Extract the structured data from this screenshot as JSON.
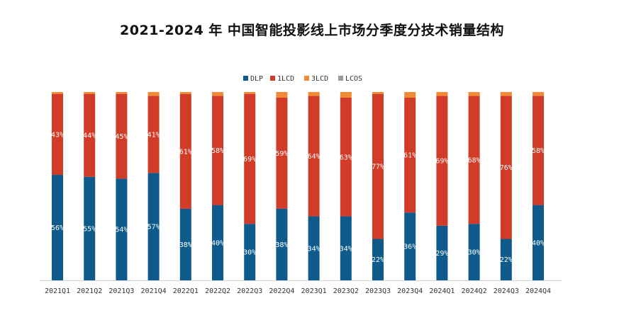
{
  "chart_data": {
    "type": "bar",
    "stacked": true,
    "title": "2021-2024 年 中国智能投影线上市场分季度分技术销量结构",
    "xlabel": "",
    "ylabel": "",
    "ylim": [
      0,
      100
    ],
    "legend_position": "top-center",
    "grid": false,
    "categories": [
      "2021Q1",
      "2021Q2",
      "2021Q3",
      "2021Q4",
      "2022Q1",
      "2022Q2",
      "2022Q3",
      "2022Q4",
      "2023Q1",
      "2023Q2",
      "2023Q3",
      "2023Q4",
      "2024Q1",
      "2024Q2",
      "2024Q3",
      "2024Q4"
    ],
    "series": [
      {
        "name": "DLP",
        "color": "#0e5a8a",
        "values": [
          56,
          55,
          54,
          57,
          38,
          40,
          30,
          38,
          34,
          34,
          22,
          36,
          29,
          30,
          22,
          40
        ],
        "labels": [
          "56%",
          "55%",
          "54%",
          "57%",
          "38%",
          "40%",
          "30%",
          "38%",
          "34%",
          "34%",
          "22%",
          "36%",
          "29%",
          "30%",
          "22%",
          "40%"
        ]
      },
      {
        "name": "1LCD",
        "color": "#d13c28",
        "values": [
          43,
          44,
          45,
          41,
          61,
          58,
          69,
          59,
          64,
          63,
          77,
          61,
          69,
          68,
          76,
          58
        ],
        "labels": [
          "43%",
          "44%",
          "45%",
          "41%",
          "61%",
          "58%",
          "69%",
          "59%",
          "64%",
          "63%",
          "77%",
          "61%",
          "69%",
          "68%",
          "76%",
          "58%"
        ]
      },
      {
        "name": "3LCD",
        "color": "#ef8a35",
        "values": [
          1,
          1,
          1,
          2,
          1,
          2,
          1,
          3,
          2,
          3,
          1,
          3,
          2,
          2,
          2,
          2
        ]
      },
      {
        "name": "LCOS",
        "color": "#9a9a9a",
        "values": [
          0,
          0,
          0,
          0,
          0,
          0,
          0,
          0,
          0,
          0,
          0,
          0,
          0,
          0,
          0,
          0
        ]
      }
    ]
  }
}
